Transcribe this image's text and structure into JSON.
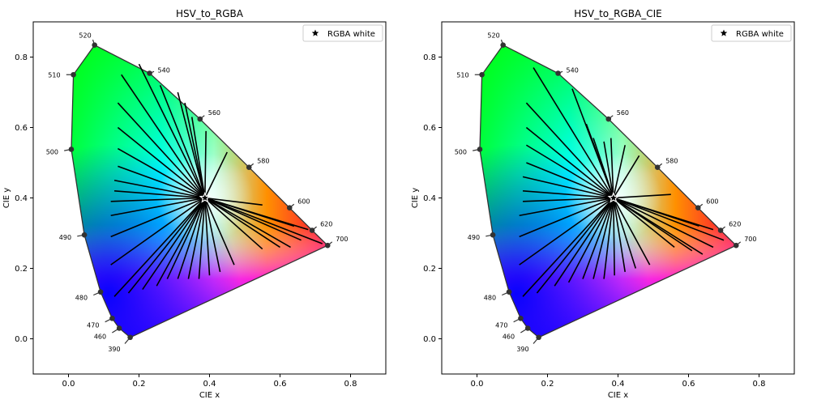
{
  "chart_data": [
    {
      "type": "scatter",
      "title": "HSV_to_RGBA",
      "xlabel": "CIE x",
      "ylabel": "CIE y",
      "xlim": [
        -0.1,
        0.9
      ],
      "ylim": [
        -0.1,
        0.9
      ],
      "xticks": [
        "0.0",
        "0.2",
        "0.4",
        "0.6",
        "0.8"
      ],
      "yticks": [
        "0.0",
        "0.2",
        "0.4",
        "0.6",
        "0.8"
      ],
      "legend": {
        "label": "RGBA white",
        "location": "upper right",
        "marker": "star"
      },
      "white_point": [
        0.387,
        0.4
      ],
      "locus_points": [
        {
          "label": "390",
          "x": 0.175,
          "y": 0.004
        },
        {
          "label": "460",
          "x": 0.144,
          "y": 0.03
        },
        {
          "label": "470",
          "x": 0.124,
          "y": 0.058
        },
        {
          "label": "480",
          "x": 0.091,
          "y": 0.133
        },
        {
          "label": "490",
          "x": 0.045,
          "y": 0.295
        },
        {
          "label": "500",
          "x": 0.008,
          "y": 0.538
        },
        {
          "label": "510",
          "x": 0.014,
          "y": 0.75
        },
        {
          "label": "520",
          "x": 0.074,
          "y": 0.834
        },
        {
          "label": "540",
          "x": 0.23,
          "y": 0.754
        },
        {
          "label": "560",
          "x": 0.373,
          "y": 0.624
        },
        {
          "label": "580",
          "x": 0.512,
          "y": 0.487
        },
        {
          "label": "600",
          "x": 0.627,
          "y": 0.372
        },
        {
          "label": "620",
          "x": 0.691,
          "y": 0.308
        },
        {
          "label": "700",
          "x": 0.735,
          "y": 0.265
        }
      ],
      "hue_line_ends": [
        [
          0.55,
          0.255
        ],
        [
          0.47,
          0.21
        ],
        [
          0.43,
          0.19
        ],
        [
          0.4,
          0.18
        ],
        [
          0.37,
          0.17
        ],
        [
          0.34,
          0.17
        ],
        [
          0.31,
          0.17
        ],
        [
          0.28,
          0.17
        ],
        [
          0.25,
          0.15
        ],
        [
          0.21,
          0.14
        ],
        [
          0.17,
          0.13
        ],
        [
          0.13,
          0.12
        ],
        [
          0.12,
          0.21
        ],
        [
          0.12,
          0.29
        ],
        [
          0.12,
          0.35
        ],
        [
          0.12,
          0.39
        ],
        [
          0.13,
          0.42
        ],
        [
          0.13,
          0.45
        ],
        [
          0.14,
          0.49
        ],
        [
          0.14,
          0.54
        ],
        [
          0.14,
          0.6
        ],
        [
          0.14,
          0.67
        ],
        [
          0.15,
          0.75
        ],
        [
          0.2,
          0.78
        ],
        [
          0.26,
          0.72
        ],
        [
          0.31,
          0.7
        ],
        [
          0.33,
          0.67
        ],
        [
          0.35,
          0.63
        ],
        [
          0.39,
          0.59
        ],
        [
          0.45,
          0.53
        ],
        [
          0.55,
          0.38
        ],
        [
          0.64,
          0.32
        ],
        [
          0.72,
          0.27
        ],
        [
          0.68,
          0.31
        ],
        [
          0.66,
          0.28
        ],
        [
          0.63,
          0.26
        ],
        [
          0.6,
          0.26
        ]
      ]
    },
    {
      "type": "scatter",
      "title": "HSV_to_RGBA_CIE",
      "xlabel": "CIE x",
      "ylabel": "CIE y",
      "xlim": [
        -0.1,
        0.9
      ],
      "ylim": [
        -0.1,
        0.9
      ],
      "xticks": [
        "0.0",
        "0.2",
        "0.4",
        "0.6",
        "0.8"
      ],
      "yticks": [
        "0.0",
        "0.2",
        "0.4",
        "0.6",
        "0.8"
      ],
      "legend": {
        "label": "RGBA white",
        "location": "upper right",
        "marker": "star"
      },
      "white_point": [
        0.387,
        0.4
      ],
      "locus_points": [
        {
          "label": "390",
          "x": 0.175,
          "y": 0.004
        },
        {
          "label": "460",
          "x": 0.144,
          "y": 0.03
        },
        {
          "label": "470",
          "x": 0.124,
          "y": 0.058
        },
        {
          "label": "480",
          "x": 0.091,
          "y": 0.133
        },
        {
          "label": "490",
          "x": 0.045,
          "y": 0.295
        },
        {
          "label": "500",
          "x": 0.008,
          "y": 0.538
        },
        {
          "label": "510",
          "x": 0.014,
          "y": 0.75
        },
        {
          "label": "520",
          "x": 0.074,
          "y": 0.834
        },
        {
          "label": "540",
          "x": 0.23,
          "y": 0.754
        },
        {
          "label": "560",
          "x": 0.373,
          "y": 0.624
        },
        {
          "label": "580",
          "x": 0.512,
          "y": 0.487
        },
        {
          "label": "600",
          "x": 0.627,
          "y": 0.372
        },
        {
          "label": "620",
          "x": 0.691,
          "y": 0.308
        },
        {
          "label": "700",
          "x": 0.735,
          "y": 0.265
        }
      ],
      "hue_line_ends": [
        [
          0.56,
          0.26
        ],
        [
          0.49,
          0.21
        ],
        [
          0.45,
          0.2
        ],
        [
          0.42,
          0.19
        ],
        [
          0.39,
          0.18
        ],
        [
          0.36,
          0.17
        ],
        [
          0.33,
          0.17
        ],
        [
          0.3,
          0.17
        ],
        [
          0.26,
          0.16
        ],
        [
          0.22,
          0.15
        ],
        [
          0.17,
          0.13
        ],
        [
          0.13,
          0.12
        ],
        [
          0.12,
          0.21
        ],
        [
          0.12,
          0.29
        ],
        [
          0.12,
          0.35
        ],
        [
          0.13,
          0.39
        ],
        [
          0.13,
          0.42
        ],
        [
          0.13,
          0.46
        ],
        [
          0.14,
          0.5
        ],
        [
          0.14,
          0.55
        ],
        [
          0.14,
          0.6
        ],
        [
          0.14,
          0.67
        ],
        [
          0.16,
          0.77
        ],
        [
          0.27,
          0.71
        ],
        [
          0.31,
          0.61
        ],
        [
          0.33,
          0.57
        ],
        [
          0.36,
          0.56
        ],
        [
          0.38,
          0.57
        ],
        [
          0.42,
          0.55
        ],
        [
          0.46,
          0.52
        ],
        [
          0.55,
          0.41
        ],
        [
          0.63,
          0.32
        ],
        [
          0.7,
          0.28
        ],
        [
          0.67,
          0.31
        ],
        [
          0.67,
          0.26
        ],
        [
          0.64,
          0.24
        ],
        [
          0.61,
          0.25
        ]
      ]
    }
  ]
}
